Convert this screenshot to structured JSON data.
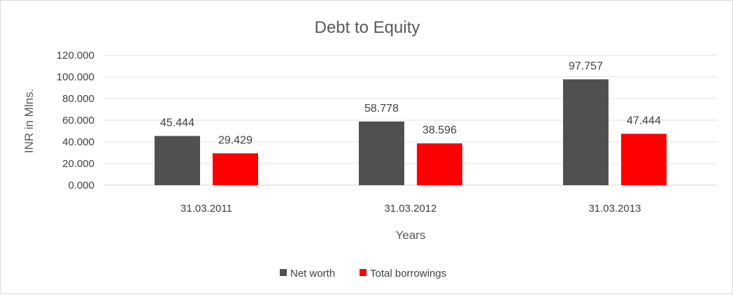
{
  "chart_data": {
    "type": "bar",
    "title": "Debt to Equity",
    "xlabel": "Years",
    "ylabel": "INR in Mlns.",
    "categories": [
      "31.03.2011",
      "31.03.2012",
      "31.03.2013"
    ],
    "ylim": [
      0,
      120
    ],
    "yticks": [
      "0.000",
      "20.000",
      "40.000",
      "60.000",
      "80.000",
      "100.000",
      "120.000"
    ],
    "grid": true,
    "legend_position": "bottom",
    "series": [
      {
        "name": "Net worth",
        "color": "#505050",
        "values": [
          45.444,
          58.778,
          97.757
        ],
        "labels": [
          "45.444",
          "58.778",
          "97.757"
        ]
      },
      {
        "name": "Total borrowings",
        "color": "#ff0000",
        "values": [
          29.429,
          38.596,
          47.444
        ],
        "labels": [
          "29.429",
          "38.596",
          "47.444"
        ]
      }
    ]
  }
}
